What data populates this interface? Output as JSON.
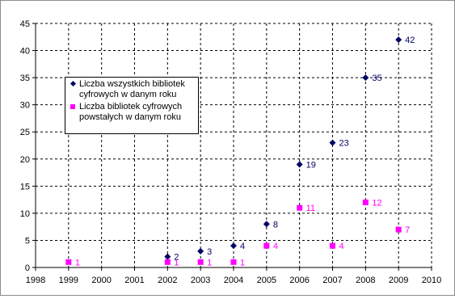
{
  "chart_data": {
    "type": "scatter",
    "title": "",
    "xlabel": "",
    "ylabel": "",
    "xlim": [
      1998,
      2010
    ],
    "ylim": [
      0,
      45
    ],
    "x_ticks": [
      1998,
      1999,
      2000,
      2001,
      2002,
      2003,
      2004,
      2005,
      2006,
      2007,
      2008,
      2009,
      2010
    ],
    "y_ticks": [
      0,
      5,
      10,
      15,
      20,
      25,
      30,
      35,
      40,
      45
    ],
    "grid": true,
    "legend_position": "upper-left",
    "series": [
      {
        "name": "Liczba wszystkich bibliotek cyfrowych w danym roku",
        "name_lines": [
          "Liczba wszystkich bibliotek",
          "cyfrowych w danym roku"
        ],
        "marker": "diamond",
        "color": "#000066",
        "points": [
          {
            "x": 2002,
            "y": 2
          },
          {
            "x": 2003,
            "y": 3
          },
          {
            "x": 2004,
            "y": 4
          },
          {
            "x": 2005,
            "y": 8
          },
          {
            "x": 2006,
            "y": 19
          },
          {
            "x": 2007,
            "y": 23
          },
          {
            "x": 2008,
            "y": 35
          },
          {
            "x": 2009,
            "y": 42
          }
        ]
      },
      {
        "name": "Liczba bibliotek cyfrowych powstałych w danym roku",
        "name_lines": [
          "Liczba bibliotek cyfrowych",
          "powstałych w danym roku"
        ],
        "marker": "square",
        "color": "#ff00ff",
        "points": [
          {
            "x": 1999,
            "y": 1
          },
          {
            "x": 2002,
            "y": 1
          },
          {
            "x": 2003,
            "y": 1
          },
          {
            "x": 2004,
            "y": 1
          },
          {
            "x": 2005,
            "y": 4
          },
          {
            "x": 2006,
            "y": 11
          },
          {
            "x": 2007,
            "y": 4
          },
          {
            "x": 2008,
            "y": 12
          },
          {
            "x": 2009,
            "y": 7
          }
        ]
      }
    ]
  }
}
